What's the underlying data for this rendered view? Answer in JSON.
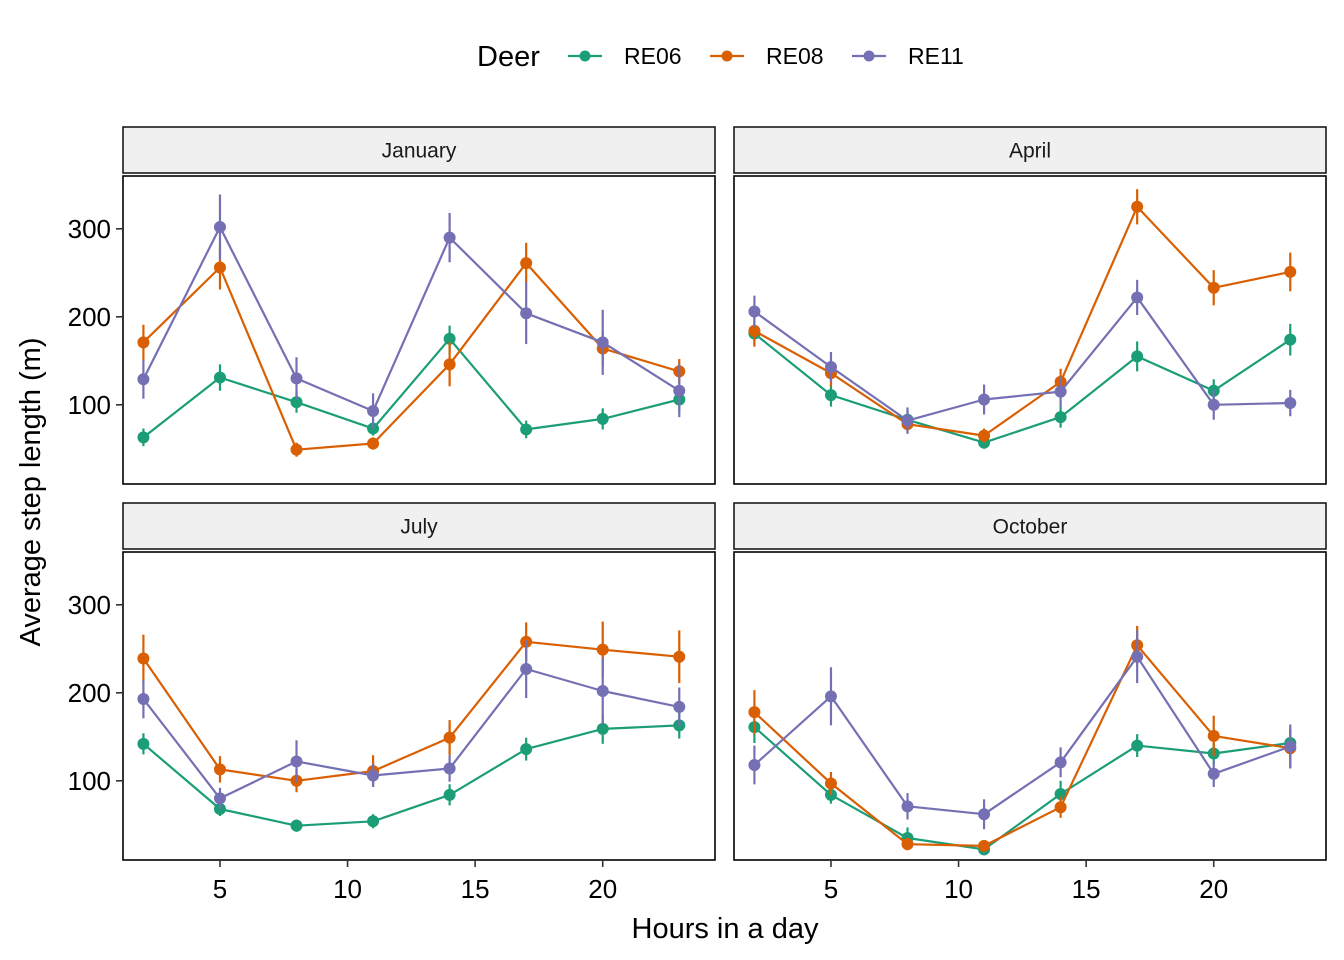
{
  "chart_data": {
    "type": "line",
    "xlabel": "Hours in a day",
    "ylabel": "Average step length (m)",
    "xlim": [
      1.2,
      24.4
    ],
    "ylim": [
      10,
      360
    ],
    "xticks": [
      5,
      10,
      15,
      20
    ],
    "yticks": [
      100,
      200,
      300
    ],
    "grid": false,
    "legend": {
      "title": "Deer",
      "position": "top",
      "entries": [
        {
          "name": "RE06",
          "color": "#1B9E77"
        },
        {
          "name": "RE08",
          "color": "#D95F02"
        },
        {
          "name": "RE11",
          "color": "#7570B3"
        }
      ]
    },
    "x": [
      2,
      5,
      8,
      11,
      14,
      17,
      20,
      23
    ],
    "panels": [
      {
        "title": "January",
        "series": [
          {
            "name": "RE06",
            "values": [
              63,
              131,
              103,
              73,
              175,
              72,
              84,
              106
            ],
            "err": [
              10,
              15,
              12,
              8,
              15,
              10,
              12,
              12
            ]
          },
          {
            "name": "RE08",
            "values": [
              171,
              256,
              49,
              56,
              146,
              261,
              164,
              138
            ],
            "err": [
              20,
              25,
              8,
              7,
              25,
              23,
              20,
              14
            ]
          },
          {
            "name": "RE11",
            "values": [
              129,
              302,
              130,
              93,
              290,
              204,
              171,
              116
            ],
            "err": [
              22,
              37,
              24,
              20,
              28,
              35,
              37,
              30
            ]
          }
        ]
      },
      {
        "title": "April",
        "series": [
          {
            "name": "RE06",
            "values": [
              181,
              111,
              83,
              57,
              86,
              155,
              116,
              174
            ],
            "err": [
              13,
              13,
              10,
              7,
              12,
              17,
              13,
              18
            ]
          },
          {
            "name": "RE08",
            "values": [
              184,
              136,
              78,
              65,
              126,
              325,
              233,
              251
            ],
            "err": [
              18,
              15,
              10,
              8,
              15,
              20,
              20,
              22
            ]
          },
          {
            "name": "RE11",
            "values": [
              206,
              143,
              82,
              106,
              115,
              222,
              100,
              102
            ],
            "err": [
              18,
              17,
              15,
              17,
              17,
              20,
              17,
              15
            ]
          }
        ]
      },
      {
        "title": "July",
        "series": [
          {
            "name": "RE06",
            "values": [
              142,
              68,
              49,
              54,
              84,
              136,
              159,
              163
            ],
            "err": [
              12,
              8,
              7,
              8,
              12,
              13,
              17,
              15
            ]
          },
          {
            "name": "RE08",
            "values": [
              239,
              113,
              100,
              111,
              149,
              258,
              249,
              241
            ],
            "err": [
              27,
              15,
              13,
              18,
              20,
              22,
              32,
              30
            ]
          },
          {
            "name": "RE11",
            "values": [
              193,
              80,
              122,
              106,
              114,
              227,
              202,
              184
            ],
            "err": [
              22,
              12,
              24,
              13,
              15,
              33,
              38,
              22
            ]
          }
        ]
      },
      {
        "title": "October",
        "series": [
          {
            "name": "RE06",
            "values": [
              161,
              84,
              35,
              22,
              85,
              140,
              131,
              143
            ],
            "err": [
              18,
              10,
              12,
              5,
              15,
              13,
              12,
              15
            ]
          },
          {
            "name": "RE08",
            "values": [
              178,
              97,
              28,
              26,
              70,
              254,
              151,
              137
            ],
            "err": [
              25,
              13,
              7,
              5,
              12,
              22,
              23,
              22
            ]
          },
          {
            "name": "RE11",
            "values": [
              118,
              196,
              71,
              62,
              121,
              241,
              108,
              139
            ],
            "err": [
              22,
              33,
              15,
              17,
              17,
              30,
              15,
              25
            ]
          }
        ]
      }
    ]
  }
}
